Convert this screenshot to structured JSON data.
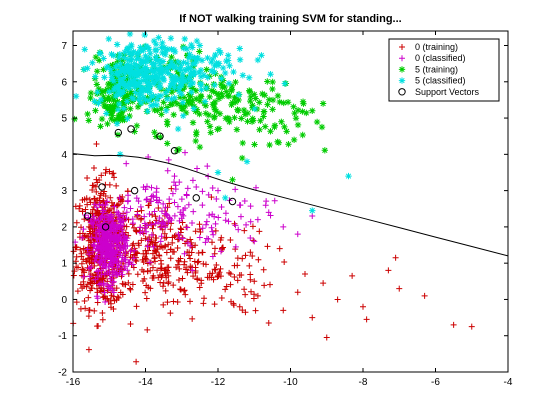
{
  "chart_data": {
    "type": "scatter",
    "title": "If NOT walking training SVM for standing...",
    "xlabel": "",
    "ylabel": "",
    "xlim": [
      -16,
      -4
    ],
    "ylim": [
      -2,
      7.4
    ],
    "x_ticks": [
      -16,
      -14,
      -12,
      -10,
      -8,
      -6,
      -4
    ],
    "y_ticks": [
      -2,
      -1,
      0,
      1,
      2,
      3,
      4,
      5,
      6,
      7
    ],
    "x_tick_labels": [
      "-16",
      "-14",
      "-12",
      "-10",
      "-8",
      "-6",
      "-4"
    ],
    "y_tick_labels": [
      "-2",
      "-1",
      "0",
      "1",
      "2",
      "3",
      "4",
      "5",
      "6",
      "7"
    ],
    "grid": false,
    "legend_position": "top-right",
    "series": [
      {
        "name": "0 (training)",
        "marker": "plus",
        "color": "#cc0000",
        "clusters": [
          {
            "cx": -15.2,
            "cy": 1.5,
            "sx": 0.35,
            "sy": 0.85,
            "n": 520
          },
          {
            "cx": -13.8,
            "cy": 1.3,
            "sx": 0.8,
            "sy": 0.75,
            "n": 240
          },
          {
            "cx": -12.3,
            "cy": 0.8,
            "sx": 0.9,
            "sy": 0.6,
            "n": 110
          }
        ],
        "points": [
          [
            -5.5,
            -0.7
          ],
          [
            -5.0,
            -0.75
          ],
          [
            -6.3,
            0.1
          ],
          [
            -7.0,
            0.3
          ],
          [
            -7.3,
            0.8
          ],
          [
            -7.1,
            1.15
          ],
          [
            -8.0,
            -0.2
          ],
          [
            -7.9,
            -0.55
          ],
          [
            -9.0,
            -1.05
          ],
          [
            -9.4,
            -0.5
          ],
          [
            -9.8,
            0.2
          ],
          [
            -10.2,
            -0.3
          ],
          [
            -10.6,
            -0.65
          ],
          [
            -11.0,
            0.5
          ],
          [
            -8.3,
            0.65
          ],
          [
            -9.6,
            0.7
          ],
          [
            -10.9,
            0.1
          ],
          [
            -11.4,
            -0.2
          ],
          [
            -9.1,
            0.45
          ],
          [
            -8.7,
            0.0
          ]
        ]
      },
      {
        "name": "0 (classified)",
        "marker": "plus",
        "color": "#cc00cc",
        "clusters": [
          {
            "cx": -15.0,
            "cy": 1.5,
            "sx": 0.25,
            "sy": 0.5,
            "n": 380
          },
          {
            "cx": -13.6,
            "cy": 2.3,
            "sx": 0.8,
            "sy": 0.6,
            "n": 110
          },
          {
            "cx": -12.2,
            "cy": 2.3,
            "sx": 0.8,
            "sy": 0.5,
            "n": 50
          }
        ],
        "points": [
          [
            -10.2,
            2.0
          ],
          [
            -9.8,
            1.8
          ],
          [
            -10.6,
            2.4
          ],
          [
            -11.0,
            1.6
          ],
          [
            -11.4,
            2.6
          ],
          [
            -9.4,
            2.3
          ],
          [
            -12.6,
            3.1
          ],
          [
            -13.2,
            3.4
          ],
          [
            -12.0,
            3.0
          ],
          [
            -10.9,
            2.2
          ]
        ]
      },
      {
        "name": "5 (training)",
        "marker": "star",
        "color": "#00cc00",
        "clusters": [
          {
            "cx": -14.8,
            "cy": 5.7,
            "sx": 0.3,
            "sy": 0.5,
            "n": 160
          },
          {
            "cx": -13.3,
            "cy": 5.8,
            "sx": 0.8,
            "sy": 0.55,
            "n": 130
          },
          {
            "cx": -11.6,
            "cy": 5.3,
            "sx": 0.9,
            "sy": 0.55,
            "n": 90
          },
          {
            "cx": -10.2,
            "cy": 5.1,
            "sx": 0.6,
            "sy": 0.5,
            "n": 30
          }
        ],
        "points": [
          [
            -9.4,
            5.2
          ],
          [
            -9.1,
            5.4
          ],
          [
            -9.9,
            4.4
          ],
          [
            -12.5,
            4.2
          ],
          [
            -11.6,
            3.3
          ],
          [
            -10.5,
            5.8
          ],
          [
            -12.2,
            4.6
          ],
          [
            -13.4,
            4.3
          ]
        ]
      },
      {
        "name": "5 (classified)",
        "marker": "star",
        "color": "#00e0e0",
        "clusters": [
          {
            "cx": -14.1,
            "cy": 6.2,
            "sx": 0.65,
            "sy": 0.45,
            "n": 280
          },
          {
            "cx": -12.8,
            "cy": 6.4,
            "sx": 0.8,
            "sy": 0.45,
            "n": 100
          }
        ],
        "points": [
          [
            -8.4,
            3.4
          ],
          [
            -9.4,
            2.45
          ],
          [
            -10.9,
            6.6
          ],
          [
            -13.3,
            7.2
          ],
          [
            -12.5,
            7.0
          ],
          [
            -11.2,
            3.8
          ],
          [
            -12.0,
            3.5
          ],
          [
            -14.7,
            4.0
          ],
          [
            -13.1,
            4.7
          ],
          [
            -11.8,
            2.8
          ]
        ]
      },
      {
        "name": "Support Vectors",
        "marker": "circle",
        "color": "#000000",
        "points": [
          [
            -14.75,
            4.6
          ],
          [
            -14.4,
            4.7
          ],
          [
            -13.6,
            4.5
          ],
          [
            -13.2,
            4.1
          ],
          [
            -15.2,
            3.1
          ],
          [
            -14.3,
            3.0
          ],
          [
            -12.6,
            2.8
          ],
          [
            -11.6,
            2.7
          ],
          [
            -15.6,
            2.3
          ],
          [
            -15.1,
            2.0
          ]
        ]
      }
    ],
    "decision_boundary": {
      "x": [
        -16,
        -15.4,
        -15.0,
        -14.6,
        -14.2,
        -13.8,
        -13.4,
        -13.0,
        -12.6,
        -12.2,
        -11.8,
        -11.0,
        -10.0,
        -9.0,
        -8.0,
        -7.0,
        -6.0,
        -5.0,
        -4.0
      ],
      "y": [
        4.02,
        3.96,
        3.97,
        3.96,
        3.92,
        3.85,
        3.76,
        3.65,
        3.52,
        3.38,
        3.25,
        3.02,
        2.76,
        2.5,
        2.24,
        1.98,
        1.72,
        1.46,
        1.2
      ],
      "color": "#000000"
    }
  }
}
